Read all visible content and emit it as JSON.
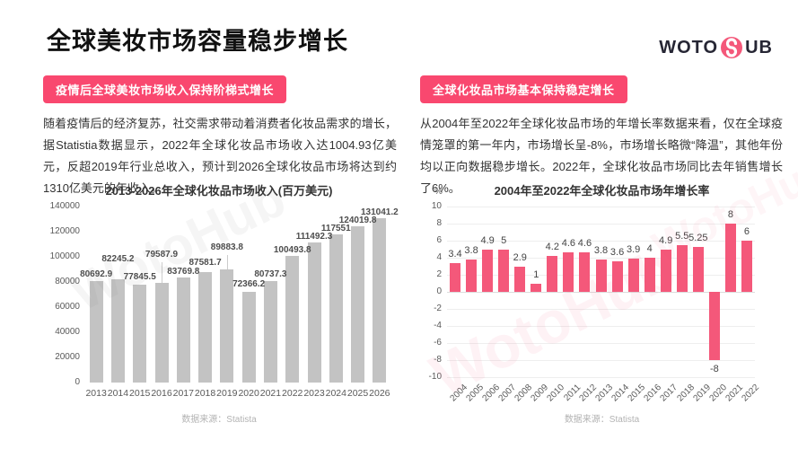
{
  "page": {
    "title": "全球美妆市场容量稳步增长",
    "watermark": "WotoHub"
  },
  "logo": {
    "text_left": "WOTO",
    "text_right": "UB"
  },
  "left_section": {
    "badge": "疫情后全球美妆市场收入保持阶梯式增长",
    "paragraph": "随着疫情后的经济复苏，社交需求带动着消费者化妆品需求的增长，据Statistia数据显示，2022年全球化妆品市场收入达1004.93亿美元，反超2019年行业总收入，预计到2026全球化妆品市场将达到约1310亿美元的年收入。",
    "source": "数据来源：Statista"
  },
  "right_section": {
    "badge": "全球化妆品市场基本保持稳定增长",
    "paragraph": "从2004年至2022年全球化妆品市场的年增长率数据来看，仅在全球疫情笼罩的第一年内，市场增长呈-8%，市场增长略微“降温”，其他年份均以正向数据稳步增长。2022年，全球化妆品市场同比去年销售增长了6%。",
    "source": "数据来源：Statista"
  },
  "chart_data": [
    {
      "type": "bar",
      "title": "2013-2026年全球化妆品市场收入(百万美元)",
      "categories": [
        "2013",
        "2014",
        "2015",
        "2016",
        "2017",
        "2018",
        "2019",
        "2020",
        "2021",
        "2022",
        "2023",
        "2024",
        "2025",
        "2026"
      ],
      "values": [
        80692.9,
        82245.2,
        77845.5,
        79587.9,
        83769.8,
        87581.7,
        89883.8,
        72366.2,
        80737.3,
        100493.8,
        111492.3,
        117551,
        124019.8,
        131041.2
      ],
      "xlabel": "",
      "ylabel": "",
      "ylim": [
        0,
        140000
      ],
      "yticks": [
        0,
        20000,
        40000,
        60000,
        80000,
        100000,
        120000,
        140000
      ],
      "bar_color": "#c3c3c3",
      "grid": false,
      "label_offsets": [
        11,
        26,
        12,
        35,
        10,
        14,
        28,
        12,
        11,
        10,
        10,
        10,
        10,
        10
      ]
    },
    {
      "type": "bar",
      "title": "2004年至2022年全球化妆品市场年增长率",
      "categories": [
        "2004",
        "2005",
        "2006",
        "2007",
        "2008",
        "2009",
        "2010",
        "2011",
        "2012",
        "2013",
        "2014",
        "2015",
        "2016",
        "2017",
        "2018",
        "2019",
        "2020",
        "2021",
        "2022"
      ],
      "values": [
        3.4,
        3.8,
        4.9,
        5,
        2.9,
        1,
        4.2,
        4.6,
        4.6,
        3.8,
        3.6,
        3.9,
        4,
        4.9,
        5.5,
        5.25,
        -8,
        8,
        6
      ],
      "xlabel": "",
      "ylabel": "%",
      "ylim": [
        -10,
        10
      ],
      "yticks": [
        10,
        8,
        6,
        4,
        2,
        0,
        -2,
        -4,
        -6,
        -8,
        -10
      ],
      "bar_color": "#f4587a",
      "grid": true
    }
  ],
  "colors": {
    "accent": "#f9486f",
    "bar_gray": "#c3c3c3",
    "bar_pink": "#f4587a"
  }
}
